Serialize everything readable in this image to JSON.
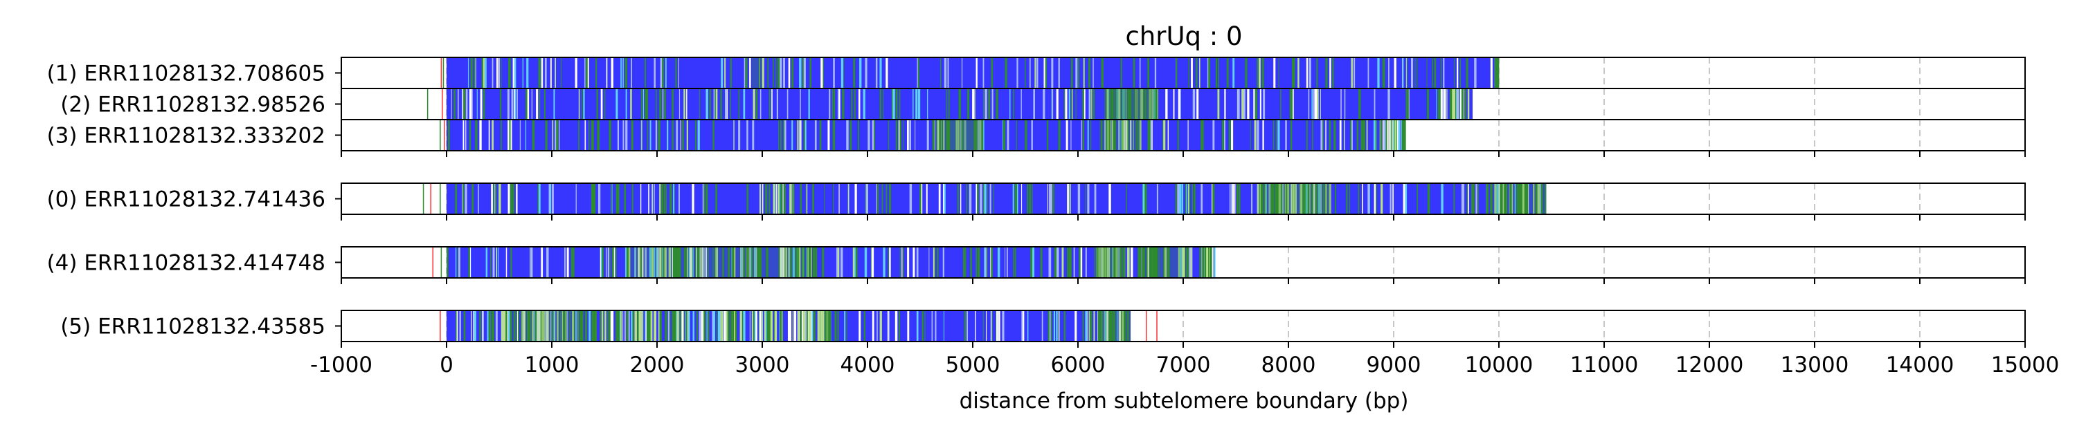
{
  "chart_data": {
    "type": "bar",
    "title": "chrUq : 0",
    "xlabel": "distance from subtelomere boundary (bp)",
    "ylabel": "",
    "xlim": [
      -1000,
      15000
    ],
    "xticks": [
      -1000,
      0,
      1000,
      2000,
      3000,
      4000,
      5000,
      6000,
      7000,
      8000,
      9000,
      10000,
      11000,
      12000,
      13000,
      14000,
      15000
    ],
    "x_grid": "dashed vertical lines at each 1000 bp",
    "colors": {
      "base": "#3636ff",
      "green": "#2e8b2e",
      "light_green": "#b8e08a",
      "cyan": "#5fd0ff",
      "light_blue": "#a8b8ff",
      "white": "#ffffff",
      "red": "#ff3030",
      "frame": "#000000",
      "grid": "#c8c8c8"
    },
    "groups": [
      {
        "reads": [
          {
            "label": "(1) ERR11028132.708605",
            "start": 0,
            "end": 10000,
            "green_zones": [
              [
                2900,
                3000
              ],
              [
                9900,
                10000
              ]
            ],
            "green_spans": [
              [
                2900,
                3000,
                0.3
              ]
            ],
            "pre_marks": [
              {
                "x": -50,
                "color": "red"
              },
              {
                "x": -30,
                "color": "green"
              }
            ],
            "post_marks": []
          },
          {
            "label": "(2) ERR11028132.98526",
            "start": 0,
            "end": 9750,
            "green_zones": [
              [
                6250,
                6750
              ],
              [
                9400,
                9750
              ]
            ],
            "green_spans": [
              [
                6250,
                6750,
                0.55
              ]
            ],
            "pre_marks": [
              {
                "x": -40,
                "color": "red"
              },
              {
                "x": -180,
                "color": "green"
              }
            ],
            "post_marks": []
          },
          {
            "label": "(3) ERR11028132.333202",
            "start": 0,
            "end": 9100,
            "green_zones": [
              [
                4650,
                5100
              ],
              [
                6200,
                6600
              ],
              [
                8800,
                9100
              ]
            ],
            "green_spans": [
              [
                4650,
                5100,
                0.45
              ],
              [
                6200,
                6600,
                0.3
              ]
            ],
            "pre_marks": [
              {
                "x": -60,
                "color": "green"
              },
              {
                "x": -20,
                "color": "red"
              }
            ],
            "post_marks": []
          }
        ]
      },
      {
        "reads": [
          {
            "label": "(0) ERR11028132.741436",
            "start": 0,
            "end": 10450,
            "green_zones": [
              [
                3100,
                3300
              ],
              [
                7700,
                8400
              ],
              [
                9950,
                10450
              ]
            ],
            "green_spans": [
              [
                7700,
                8400,
                0.4
              ],
              [
                9950,
                10450,
                0.25
              ]
            ],
            "pre_marks": [
              {
                "x": -220,
                "color": "green"
              },
              {
                "x": -150,
                "color": "red"
              },
              {
                "x": -60,
                "color": "green"
              }
            ],
            "post_marks": []
          }
        ]
      },
      {
        "reads": [
          {
            "label": "(4) ERR11028132.414748",
            "start": 0,
            "end": 7300,
            "green_zones": [
              [
                1700,
                3500
              ],
              [
                6150,
                6450
              ],
              [
                6500,
                7300
              ]
            ],
            "green_spans": [
              [
                1700,
                3500,
                0.25
              ],
              [
                6150,
                6450,
                0.5
              ],
              [
                6600,
                7000,
                0.3
              ]
            ],
            "pre_marks": [
              {
                "x": -130,
                "color": "red"
              },
              {
                "x": -50,
                "color": "green"
              }
            ],
            "post_marks": []
          }
        ]
      },
      {
        "reads": [
          {
            "label": "(5) ERR11028132.43585",
            "start": 0,
            "end": 6500,
            "green_zones": [
              [
                400,
                3700
              ],
              [
                6100,
                6500
              ]
            ],
            "green_spans": [
              [
                700,
                1300,
                0.3
              ],
              [
                6200,
                6500,
                0.3
              ]
            ],
            "pre_marks": [
              {
                "x": -60,
                "color": "red"
              }
            ],
            "post_marks": [
              {
                "x": 6650,
                "color": "red"
              },
              {
                "x": 6750,
                "color": "red"
              }
            ]
          }
        ]
      }
    ]
  }
}
